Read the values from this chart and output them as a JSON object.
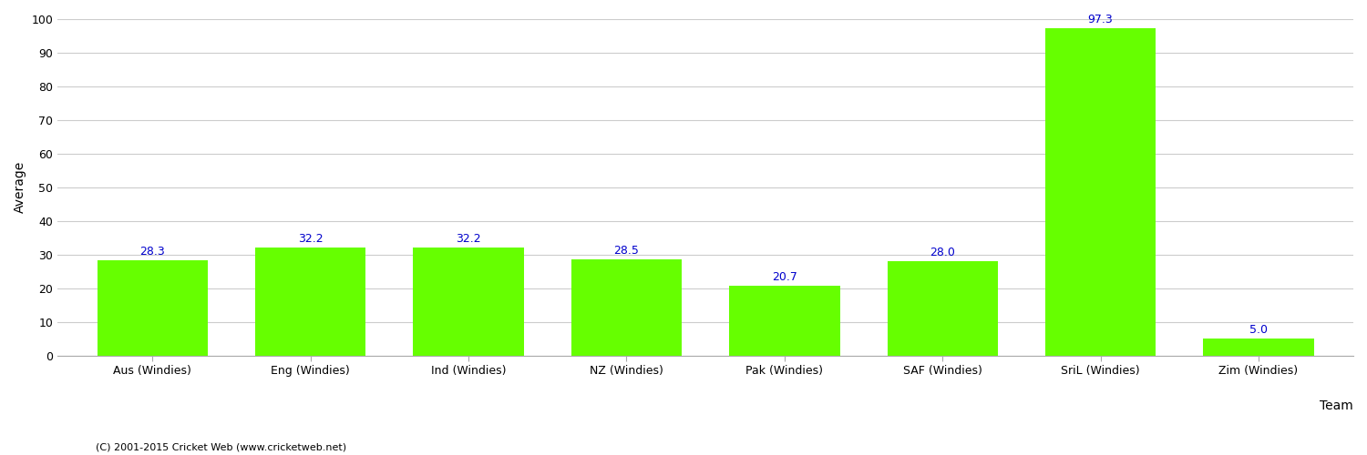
{
  "categories": [
    "Aus (Windies)",
    "Eng (Windies)",
    "Ind (Windies)",
    "NZ (Windies)",
    "Pak (Windies)",
    "SAF (Windies)",
    "SriL (Windies)",
    "Zim (Windies)"
  ],
  "values": [
    28.3,
    32.2,
    32.2,
    28.5,
    20.7,
    28.0,
    97.3,
    5.0
  ],
  "bar_color": "#66ff00",
  "label_color": "#0000cc",
  "ylabel": "Average",
  "xlabel": "Team",
  "ylim": [
    0,
    100
  ],
  "yticks": [
    0,
    10,
    20,
    30,
    40,
    50,
    60,
    70,
    80,
    90,
    100
  ],
  "grid_color": "#cccccc",
  "background_color": "#ffffff",
  "footnote": "(C) 2001-2015 Cricket Web (www.cricketweb.net)",
  "label_fontsize": 9,
  "axis_fontsize": 10,
  "tick_fontsize": 9
}
